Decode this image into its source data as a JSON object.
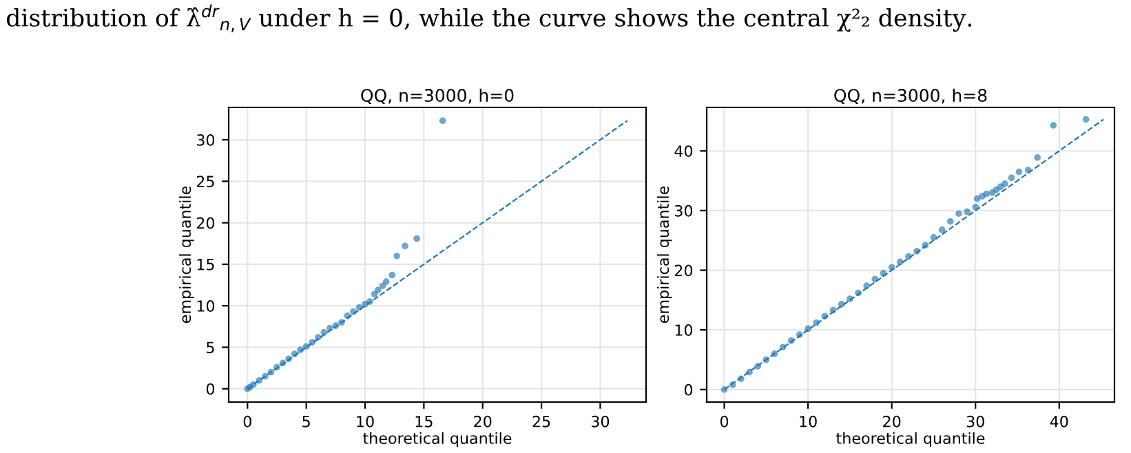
{
  "chart_data": [
    {
      "type": "scatter",
      "title": "QQ, n=3000, h=0",
      "xlabel": "theoretical quantile",
      "ylabel": "empirical quantile",
      "annotations": [
        "distribution of λ̂$^{dr}$$_{n,V}$ under h = 0, while the curve shows the central χ²₂ density."
      ],
      "xlim": [
        -1.6,
        33.9
      ],
      "ylim": [
        -1.6,
        33.9
      ],
      "xticks": [
        0,
        5,
        10,
        15,
        20,
        25,
        30
      ],
      "yticks": [
        0,
        5,
        10,
        15,
        20,
        25,
        30
      ],
      "grid": true,
      "series": [
        {
          "color": "#1f77b4",
          "marker": "circle",
          "x": [
            0,
            0.2,
            0.5,
            1,
            1.5,
            2,
            2.5,
            3,
            3.5,
            4,
            4.5,
            5,
            5.5,
            6,
            6.5,
            7,
            7.5,
            8,
            8.5,
            9,
            9.5,
            10,
            10.4,
            10.8,
            11.1,
            11.5,
            11.8,
            12.3,
            12.7,
            13.4,
            14.4,
            16.6
          ],
          "values": [
            0,
            0.2,
            0.5,
            1.0,
            1.5,
            2.0,
            2.6,
            3.1,
            3.6,
            4.2,
            4.7,
            5.1,
            5.6,
            6.2,
            6.8,
            7.3,
            7.6,
            8.0,
            8.8,
            9.3,
            9.8,
            10.2,
            10.5,
            11.4,
            11.9,
            12.4,
            12.9,
            13.7,
            16.0,
            17.2,
            18.1,
            32.3
          ]
        },
        {
          "type": "line",
          "line_style": "dashed",
          "color": "#1f77b4",
          "x": [
            0,
            32.3
          ],
          "values": [
            0,
            32.3
          ]
        }
      ]
    },
    {
      "type": "scatter",
      "title": "QQ, n=3000, h=8",
      "xlabel": "theoretical quantile",
      "ylabel": "empirical quantile",
      "xlim": [
        -2.1,
        46.6
      ],
      "ylim": [
        -2.1,
        47.3
      ],
      "xticks": [
        0,
        10,
        20,
        30,
        40
      ],
      "yticks": [
        0,
        10,
        20,
        30,
        40
      ],
      "grid": true,
      "series": [
        {
          "color": "#1f77b4",
          "marker": "circle",
          "x": [
            0,
            1,
            2,
            3,
            4,
            5,
            6,
            7,
            8,
            9,
            10,
            11,
            12,
            13,
            14,
            15,
            16,
            17,
            18,
            19,
            20,
            21,
            22,
            23,
            24,
            25,
            26,
            27,
            28,
            29,
            30,
            30.2,
            30.8,
            31.3,
            32,
            32.5,
            33,
            33.5,
            34.3,
            35.2,
            36.3,
            37.4,
            39.3,
            43.2
          ],
          "values": [
            0,
            0.8,
            1.8,
            2.9,
            3.9,
            5.0,
            6.0,
            7.1,
            8.2,
            9.2,
            10.2,
            11.2,
            12.3,
            13.3,
            14.3,
            15.2,
            16.2,
            17.4,
            18.5,
            19.5,
            20.5,
            21.4,
            22.3,
            23.2,
            24.2,
            25.5,
            26.8,
            28.2,
            29.5,
            29.8,
            30.6,
            32.0,
            32.4,
            32.8,
            33.0,
            33.5,
            34.0,
            34.5,
            35.5,
            36.5,
            36.8,
            38.9,
            44.3,
            45.3
          ]
        },
        {
          "type": "line",
          "line_style": "dashed",
          "color": "#1f77b4",
          "x": [
            0,
            45.3
          ],
          "values": [
            0,
            45.3
          ]
        }
      ]
    }
  ]
}
